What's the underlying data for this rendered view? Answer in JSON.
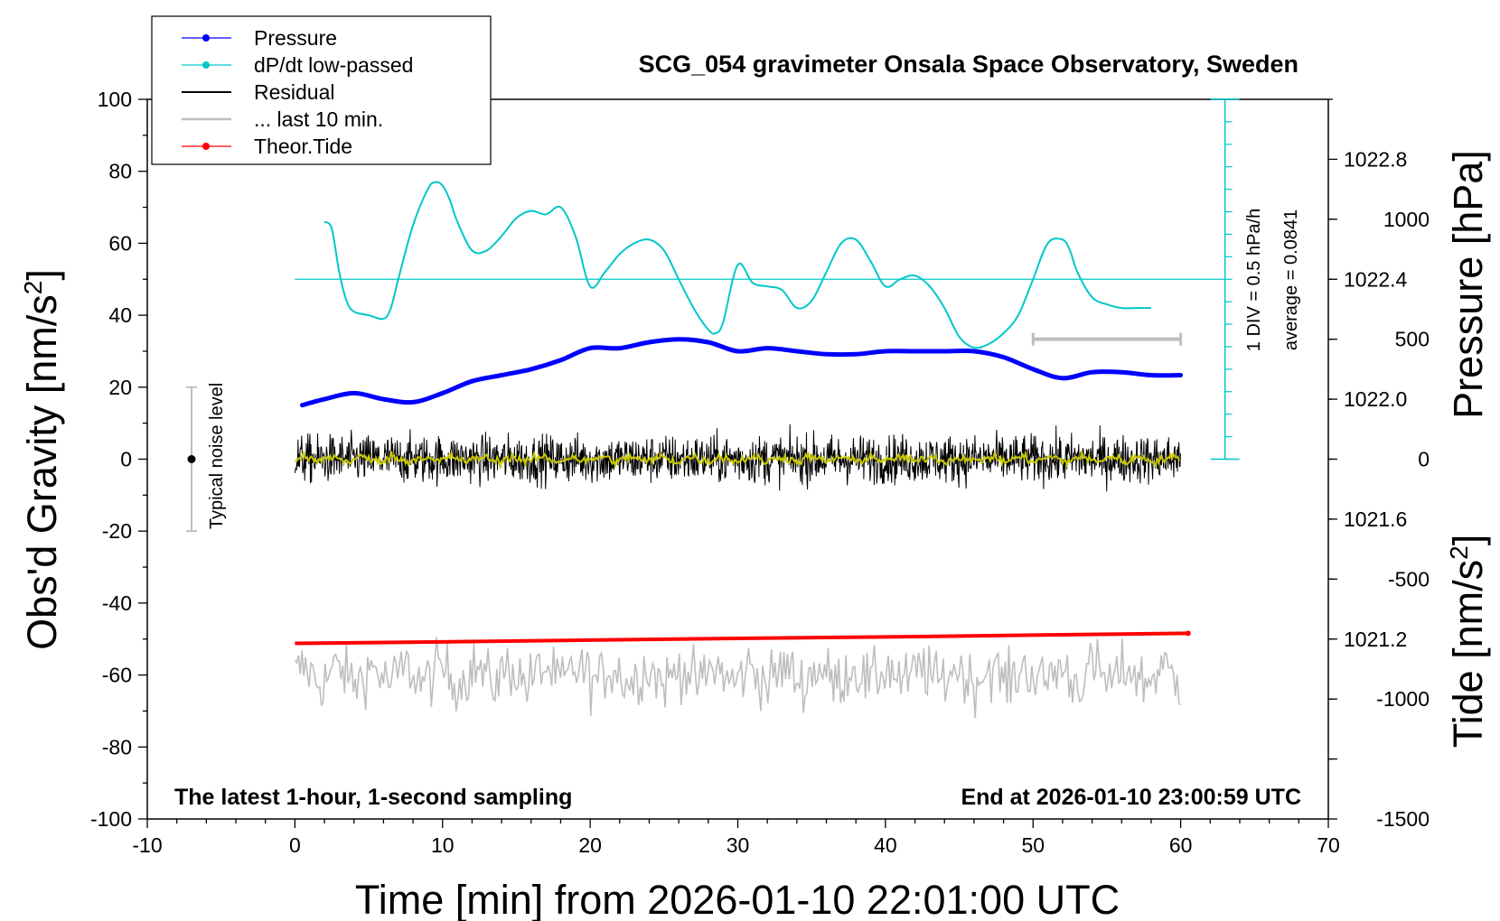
{
  "chart_data": {
    "type": "line",
    "title": "SCG_054 gravimeter Onsala Space Observatory, Sweden",
    "xlabel": "Time [min] from 2026-01-10 22:01:00 UTC",
    "ylabel_main": "Obs'd Gravity [nm/s",
    "ylabel_pressure": "Pressure [hPa]",
    "ylabel_tide": "Tide [nm/s",
    "superscript": "2",
    "xlim": [
      -10,
      70
    ],
    "ylim": [
      -100,
      100
    ],
    "pressure_lim": [
      1020.6,
      1023.0
    ],
    "tide_lim": [
      -1500,
      1500
    ],
    "x_ticks": [
      "-10",
      "0",
      "10",
      "20",
      "30",
      "40",
      "50",
      "60",
      "70"
    ],
    "y_ticks": [
      "-100",
      "-80",
      "-60",
      "-40",
      "-20",
      "0",
      "20",
      "40",
      "60",
      "80",
      "100"
    ],
    "pressure_ticks": [
      "1021.2",
      "1021.6",
      "1022.0",
      "1022.4",
      "1022.8"
    ],
    "tide_ticks": [
      "-1500",
      "-1000",
      "-500",
      "0",
      "500",
      "1000"
    ],
    "legend": [
      {
        "label": "Pressure",
        "color": "#0000ff"
      },
      {
        "label": "dP/dt low-passed",
        "color": "#00c8c8"
      },
      {
        "label": "Residual",
        "color": "#000000"
      },
      {
        "label": "... last 10 min.",
        "color": "#bebebe"
      },
      {
        "label": "Theor.Tide",
        "color": "#ff0000"
      }
    ],
    "annotations": {
      "noise": "Typical noise level",
      "div": "1 DIV = 0.5 hPa/h",
      "average": "average = 0.0841",
      "latest": "The latest 1-hour, 1-second sampling",
      "end": "End at 2026-01-10 23:00:59 UTC"
    },
    "noise_bar": {
      "x": -7,
      "ymin": -20,
      "ymax": 20
    },
    "dpdt_scale_bar": {
      "x": 63,
      "ymin": 0,
      "ymax": 100,
      "baseline": 50
    },
    "last10_bar": {
      "xmin": 50,
      "xmax": 60,
      "tide": 500
    },
    "series": [
      {
        "name": "Pressure",
        "color": "#0000ff",
        "unit": "hPa",
        "x": [
          0.5,
          2,
          4,
          6,
          8,
          10,
          12,
          14,
          16,
          18,
          20,
          22,
          24,
          26,
          28,
          30,
          32,
          34,
          36,
          38,
          40,
          42,
          44,
          46,
          48,
          50,
          52,
          54,
          56,
          58,
          60
        ],
        "y": [
          1021.98,
          1022.0,
          1022.02,
          1022.0,
          1021.99,
          1022.02,
          1022.06,
          1022.08,
          1022.1,
          1022.13,
          1022.17,
          1022.17,
          1022.19,
          1022.2,
          1022.19,
          1022.16,
          1022.17,
          1022.16,
          1022.15,
          1022.15,
          1022.16,
          1022.16,
          1022.16,
          1022.16,
          1022.14,
          1022.1,
          1022.07,
          1022.09,
          1022.09,
          1022.08,
          1022.08
        ]
      },
      {
        "name": "dP/dt low-passed",
        "color": "#00c8c8",
        "unit": "nm/s2",
        "x": [
          2,
          2.5,
          3,
          3.5,
          4,
          5,
          6,
          6.5,
          7,
          8,
          9,
          9.5,
          10,
          10.5,
          11,
          12,
          13,
          14,
          15,
          16,
          17,
          18,
          19,
          20,
          21,
          22,
          23,
          24,
          25,
          26,
          27,
          28,
          28.5,
          29,
          30,
          31,
          32,
          33,
          34,
          35,
          36,
          37,
          38,
          39,
          40,
          41,
          42,
          43,
          44,
          45,
          46,
          47,
          48,
          49,
          50,
          51,
          52,
          52.5,
          53,
          54,
          55,
          56,
          57,
          58
        ],
        "y": [
          66,
          64,
          52,
          44,
          41,
          40,
          39,
          42,
          50,
          65,
          75,
          77,
          76,
          72,
          66,
          58,
          58,
          62,
          67,
          69,
          68,
          70,
          62,
          48,
          52,
          57,
          60,
          61,
          58,
          50,
          42,
          36,
          35,
          38,
          54,
          49,
          48,
          47,
          42,
          44,
          52,
          60,
          61,
          55,
          48,
          50,
          51,
          48,
          42,
          34,
          31,
          32,
          35,
          40,
          50,
          60,
          61,
          58,
          52,
          45,
          43,
          42,
          42,
          42
        ]
      },
      {
        "name": "Residual",
        "color": "#000000",
        "unit": "nm/s2",
        "x": [
          0,
          60
        ],
        "y": [
          0,
          0
        ],
        "amplitude": 8
      },
      {
        "name": "Residual smoothed",
        "color": "#c8c800",
        "unit": "nm/s2",
        "x": [
          0,
          60
        ],
        "y": [
          0,
          0
        ],
        "amplitude": 1.5
      },
      {
        "name": "Theor.Tide",
        "color": "#ff0000",
        "unit": "nm/s2",
        "x": [
          0,
          10,
          20,
          30,
          40,
          50,
          60.5
        ],
        "y": [
          -51.2,
          -50.8,
          -50.3,
          -49.8,
          -49.4,
          -48.9,
          -48.4
        ]
      },
      {
        "name": "last 10 min.",
        "color": "#bebebe",
        "unit": "nm/s2",
        "x": [
          0,
          60
        ],
        "y": [
          -60,
          -60
        ],
        "amplitude": 9
      }
    ]
  }
}
